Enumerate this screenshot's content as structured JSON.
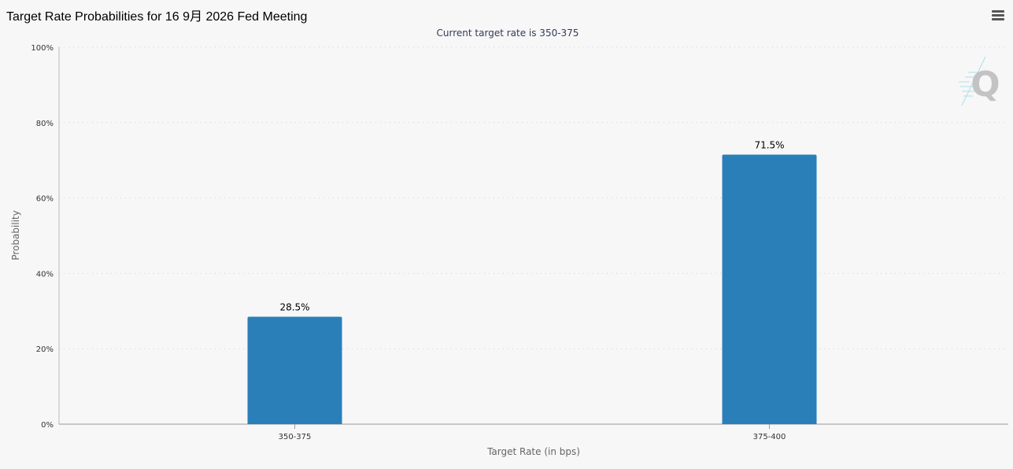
{
  "header": {
    "title": "Target Rate Probabilities for 16 9月 2026 Fed Meeting"
  },
  "chart_data": {
    "type": "bar",
    "title": "Target Rate Probabilities for 16 9月 2026 Fed Meeting",
    "subtitle": "Current target rate is 350-375",
    "xlabel": "Target Rate (in bps)",
    "ylabel": "Probability",
    "categories": [
      "350-375",
      "375-400"
    ],
    "values": [
      28.5,
      71.5
    ],
    "data_labels": [
      "28.5%",
      "71.5%"
    ],
    "ylim": [
      0,
      100
    ],
    "y_ticks": [
      "0%",
      "20%",
      "40%",
      "60%",
      "80%",
      "100%"
    ],
    "y_tick_values": [
      0,
      20,
      40,
      60,
      80,
      100
    ],
    "grid": true,
    "bar_color": "#2a7fb8"
  },
  "icons": {
    "menu": "hamburger-menu-icon",
    "watermark": "q-logo"
  },
  "watermark_text": "Q"
}
